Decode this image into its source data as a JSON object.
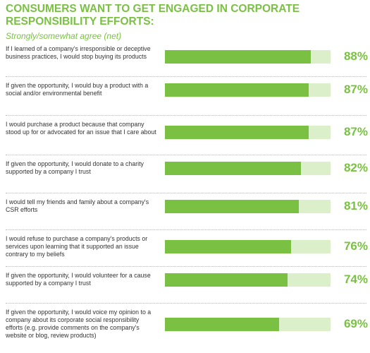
{
  "chart_data": {
    "type": "bar",
    "orientation": "horizontal",
    "title": "CONSUMERS WANT TO GET ENGAGED IN CORPORATE RESPONSIBILITY EFFORTS:",
    "subtitle": "Strongly/somewhat agree (net)",
    "xlim": [
      0,
      100
    ],
    "grid": false,
    "categories": [
      "If I learned of a company's irresponsible or deceptive business practices, I would stop buying its products",
      "If given the opportunity, I would buy a product with a social and/or environmental benefit",
      "I would purchase a product because that company stood up for or advocated for an issue that I care about",
      "If given the opportunity, I would donate to a charity supported by a company I trust",
      "I would tell my friends and family about a company's CSR efforts",
      "I would refuse to purchase a company's products or services upon learning that it supported an issue contrary to my beliefs",
      "If given the opportunity, I would volunteer for a cause supported by a company I trust",
      "If given the opportunity, I would voice my opinion to a company about its corporate social responsibility efforts (e.g. provide comments on the company's website or blog, review products)"
    ],
    "values": [
      88,
      87,
      87,
      82,
      81,
      76,
      74,
      69
    ],
    "value_labels": [
      "88%",
      "87%",
      "87%",
      "82%",
      "81%",
      "76%",
      "74%",
      "69%"
    ],
    "colors": {
      "bar": "#7ac143",
      "track": "#dcefcb",
      "accent": "#7ac143"
    }
  }
}
